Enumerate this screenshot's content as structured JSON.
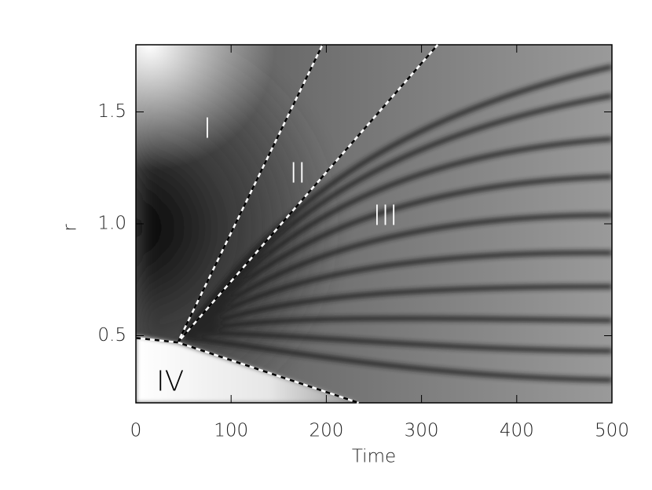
{
  "chart_data": {
    "type": "heatmap",
    "x_label": "Time",
    "y_label": "r",
    "xlim": [
      0,
      500
    ],
    "ylim": [
      0.2,
      1.8
    ],
    "xticks": [
      0,
      100,
      200,
      300,
      400,
      500
    ],
    "yticks": [
      0.5,
      {
        "value": 1.0,
        "label": "1.0"
      },
      1.5
    ],
    "lines": [
      {
        "color": "#000000",
        "x": [
          44,
          196
        ],
        "y": [
          0.47,
          1.8
        ]
      },
      {
        "color": "#000000",
        "x": [
          44,
          317
        ],
        "y": [
          0.47,
          1.8
        ]
      },
      {
        "color": "#000000",
        "x": [
          0,
          44,
          234
        ],
        "y": [
          0.49,
          0.47,
          0.2
        ]
      }
    ],
    "annotations": [
      {
        "text": "I",
        "x": 75,
        "y": 1.42,
        "color": "#ffffff"
      },
      {
        "text": "II",
        "x": 170,
        "y": 1.22,
        "color": "#ffffff"
      },
      {
        "text": "III",
        "x": 262,
        "y": 1.03,
        "color": "#ffffff"
      },
      {
        "text": "IV",
        "x": 36,
        "y": 0.29,
        "color": "#000000"
      }
    ]
  }
}
